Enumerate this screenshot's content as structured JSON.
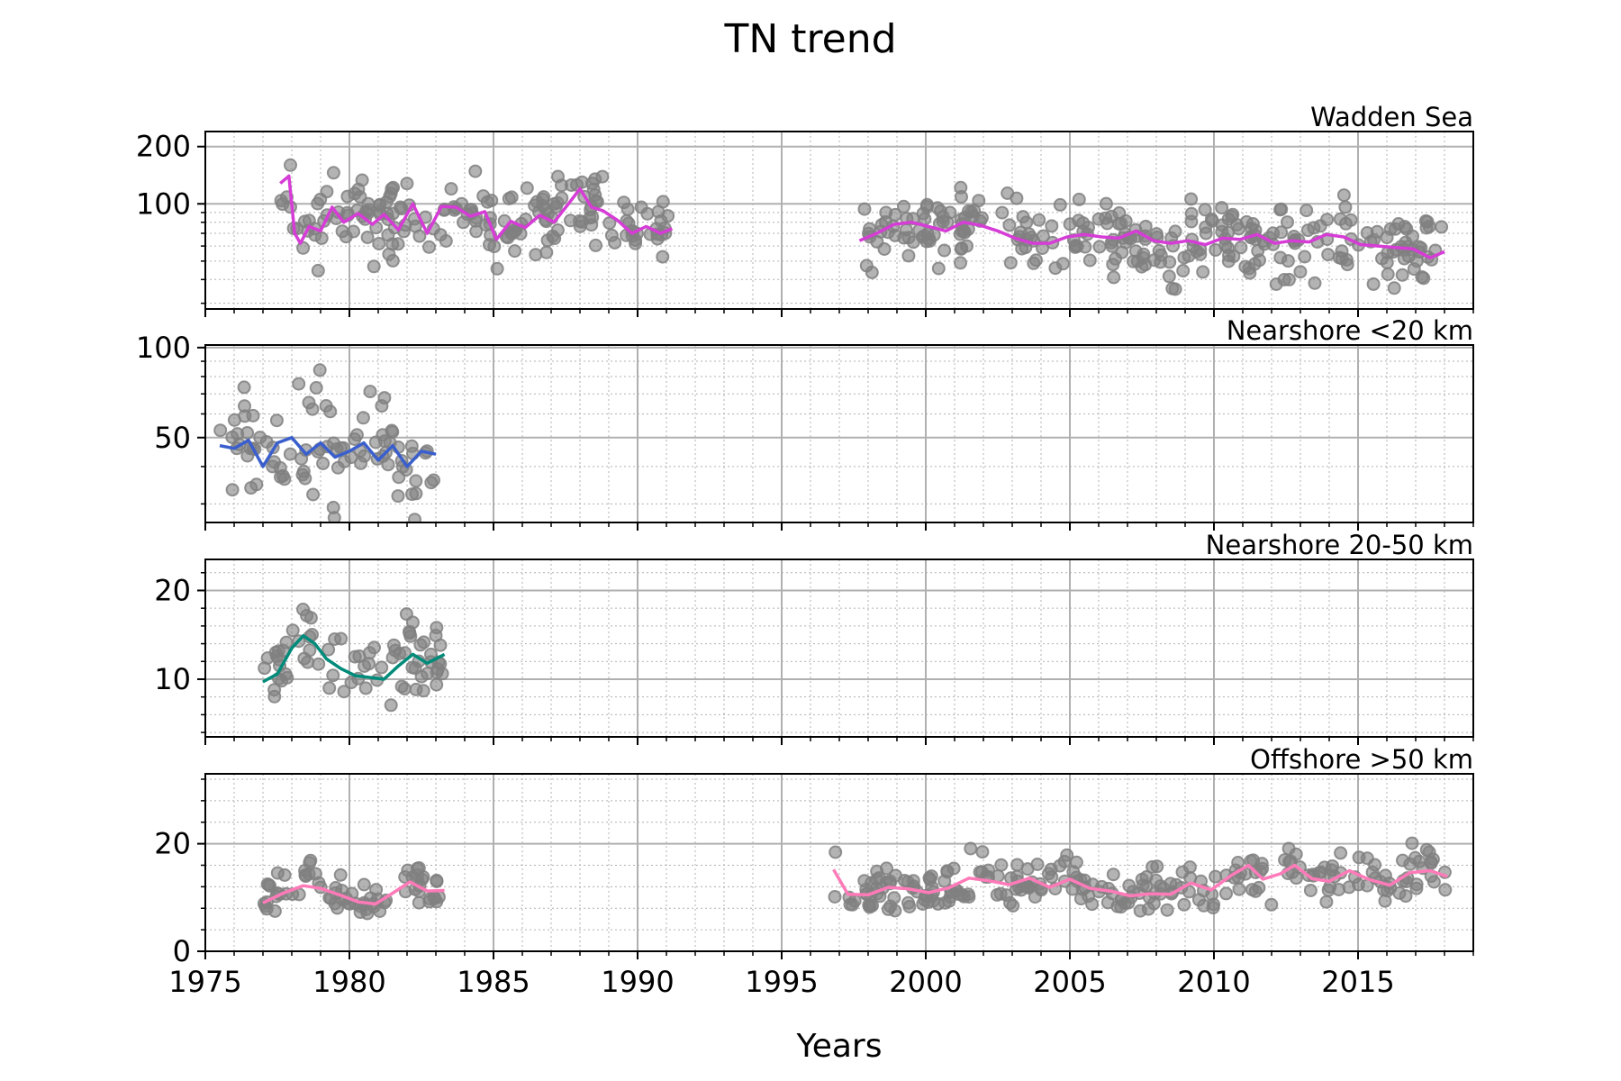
{
  "figure": {
    "title": "TN trend",
    "xlabel": "Years"
  },
  "chart_data": [
    {
      "type": "scatter",
      "title": "Wadden Sea",
      "scale": "log",
      "ylim": [
        28,
        240
      ],
      "yticks": [
        100,
        200
      ],
      "xlim": [
        1975,
        2019
      ],
      "xticks": [
        1975,
        1980,
        1985,
        1990,
        1995,
        2000,
        2005,
        2010,
        2015
      ],
      "grid": true,
      "trend_color": "#d63cd6",
      "point_color": "#808080",
      "trend": [
        {
          "x": [
            1977.6,
            1977.9,
            1978.1,
            1978.3,
            1978.6,
            1979.0,
            1979.4,
            1979.8,
            1980.3,
            1980.8,
            1981.2,
            1981.7,
            1982.2,
            1982.7,
            1983.2,
            1983.7,
            1984.2,
            1984.7,
            1985.1,
            1985.6,
            1986.1,
            1986.6,
            1987.1,
            1987.6,
            1988.0,
            1988.4,
            1988.8,
            1989.3,
            1989.8,
            1990.3,
            1990.8,
            1991.2
          ],
          "y": [
            128,
            140,
            70,
            62,
            76,
            72,
            96,
            80,
            89,
            78,
            88,
            73,
            100,
            70,
            97,
            96,
            86,
            91,
            65,
            81,
            75,
            87,
            80,
            100,
            120,
            96,
            92,
            82,
            70,
            76,
            70,
            74
          ]
        },
        {
          "x": [
            1997.7,
            1998.3,
            1998.9,
            1999.5,
            2000.1,
            2000.7,
            2001.3,
            2001.9,
            2002.5,
            2003.1,
            2003.7,
            2004.3,
            2004.9,
            2005.5,
            2006.1,
            2006.7,
            2007.3,
            2007.9,
            2008.5,
            2009.1,
            2009.7,
            2010.3,
            2010.9,
            2011.5,
            2012.1,
            2012.7,
            2013.3,
            2013.9,
            2014.5,
            2015.1,
            2015.7,
            2016.3,
            2016.9,
            2017.5,
            2018.0
          ],
          "y": [
            64,
            70,
            78,
            80,
            76,
            72,
            80,
            77,
            72,
            66,
            62,
            62,
            67,
            69,
            67,
            66,
            72,
            64,
            62,
            64,
            61,
            66,
            65,
            69,
            62,
            64,
            63,
            69,
            67,
            61,
            60,
            59,
            58,
            52,
            56
          ]
        }
      ]
    },
    {
      "type": "scatter",
      "title": "Nearshore <20 km",
      "scale": "log",
      "ylim": [
        26,
        102
      ],
      "yticks": [
        50,
        100
      ],
      "xlim": [
        1975,
        2019
      ],
      "xticks": [
        1975,
        1980,
        1985,
        1990,
        1995,
        2000,
        2005,
        2010,
        2015
      ],
      "grid": true,
      "trend_color": "#3a5fcd",
      "point_color": "#808080",
      "trend": [
        {
          "x": [
            1975.5,
            1976.0,
            1976.5,
            1977.0,
            1977.5,
            1978.0,
            1978.5,
            1979.0,
            1979.5,
            1980.0,
            1980.5,
            1981.0,
            1981.5,
            1982.0,
            1982.5,
            1983.0
          ],
          "y": [
            47,
            46,
            49,
            40,
            48,
            50,
            44,
            48,
            43,
            45,
            48,
            42,
            47,
            40,
            45,
            44
          ]
        }
      ]
    },
    {
      "type": "scatter",
      "title": "Nearshore 20-50 km",
      "scale": "linear",
      "ylim": [
        3.5,
        23.5
      ],
      "yticks": [
        10,
        20
      ],
      "xlim": [
        1975,
        2019
      ],
      "xticks": [
        1975,
        1980,
        1985,
        1990,
        1995,
        2000,
        2005,
        2010,
        2015
      ],
      "grid": true,
      "trend_color": "#008b7a",
      "point_color": "#808080",
      "trend": [
        {
          "x": [
            1977.0,
            1977.5,
            1978.0,
            1978.4,
            1978.8,
            1979.2,
            1979.7,
            1980.2,
            1980.7,
            1981.2,
            1981.7,
            1982.2,
            1982.7,
            1983.3
          ],
          "y": [
            9.7,
            10.6,
            13.5,
            14.9,
            14.0,
            12.3,
            11.2,
            10.4,
            10.2,
            10.0,
            11.5,
            12.8,
            11.8,
            12.8
          ]
        }
      ]
    },
    {
      "type": "scatter",
      "title": "Offshore >50 km",
      "scale": "linear",
      "ylim": [
        0,
        33
      ],
      "yticks": [
        0,
        20
      ],
      "xlim": [
        1975,
        2019
      ],
      "xticks": [
        1975,
        1980,
        1985,
        1990,
        1995,
        2000,
        2005,
        2010,
        2015
      ],
      "xticklabels": [
        "1975",
        "1980",
        "1985",
        "1990",
        "1995",
        "2000",
        "2005",
        "2010",
        "2015"
      ],
      "grid": true,
      "trend_color": "#ff7ab8",
      "point_color": "#808080",
      "trend": [
        {
          "x": [
            1977.0,
            1977.7,
            1978.4,
            1979.0,
            1979.7,
            1980.3,
            1980.9,
            1981.5,
            1982.1,
            1982.7,
            1983.3
          ],
          "y": [
            9.0,
            10.8,
            12.2,
            11.7,
            10.4,
            9.2,
            8.8,
            10.8,
            12.9,
            11.2,
            11.3
          ]
        },
        {
          "x": [
            1996.8,
            1997.3,
            1998.0,
            1998.7,
            1999.4,
            2000.1,
            2000.8,
            2001.5,
            2002.2,
            2002.9,
            2003.6,
            2004.3,
            2005.0,
            2005.7,
            2006.4,
            2007.1,
            2007.8,
            2008.5,
            2009.2,
            2009.9,
            2010.6,
            2011.2,
            2011.7,
            2012.3,
            2012.8,
            2013.4,
            2014.0,
            2014.7,
            2015.4,
            2016.1,
            2016.8,
            2017.5,
            2018.1
          ],
          "y": [
            15.2,
            10.6,
            10.5,
            11.9,
            11.6,
            10.9,
            11.8,
            13.6,
            13.1,
            12.4,
            13.6,
            11.9,
            13.4,
            11.7,
            11.2,
            10.3,
            10.7,
            10.6,
            12.7,
            11.4,
            14.1,
            16.0,
            13.4,
            14.4,
            16.0,
            13.5,
            13.0,
            15.0,
            13.3,
            12.3,
            14.6,
            15.0,
            13.9
          ]
        }
      ]
    }
  ]
}
